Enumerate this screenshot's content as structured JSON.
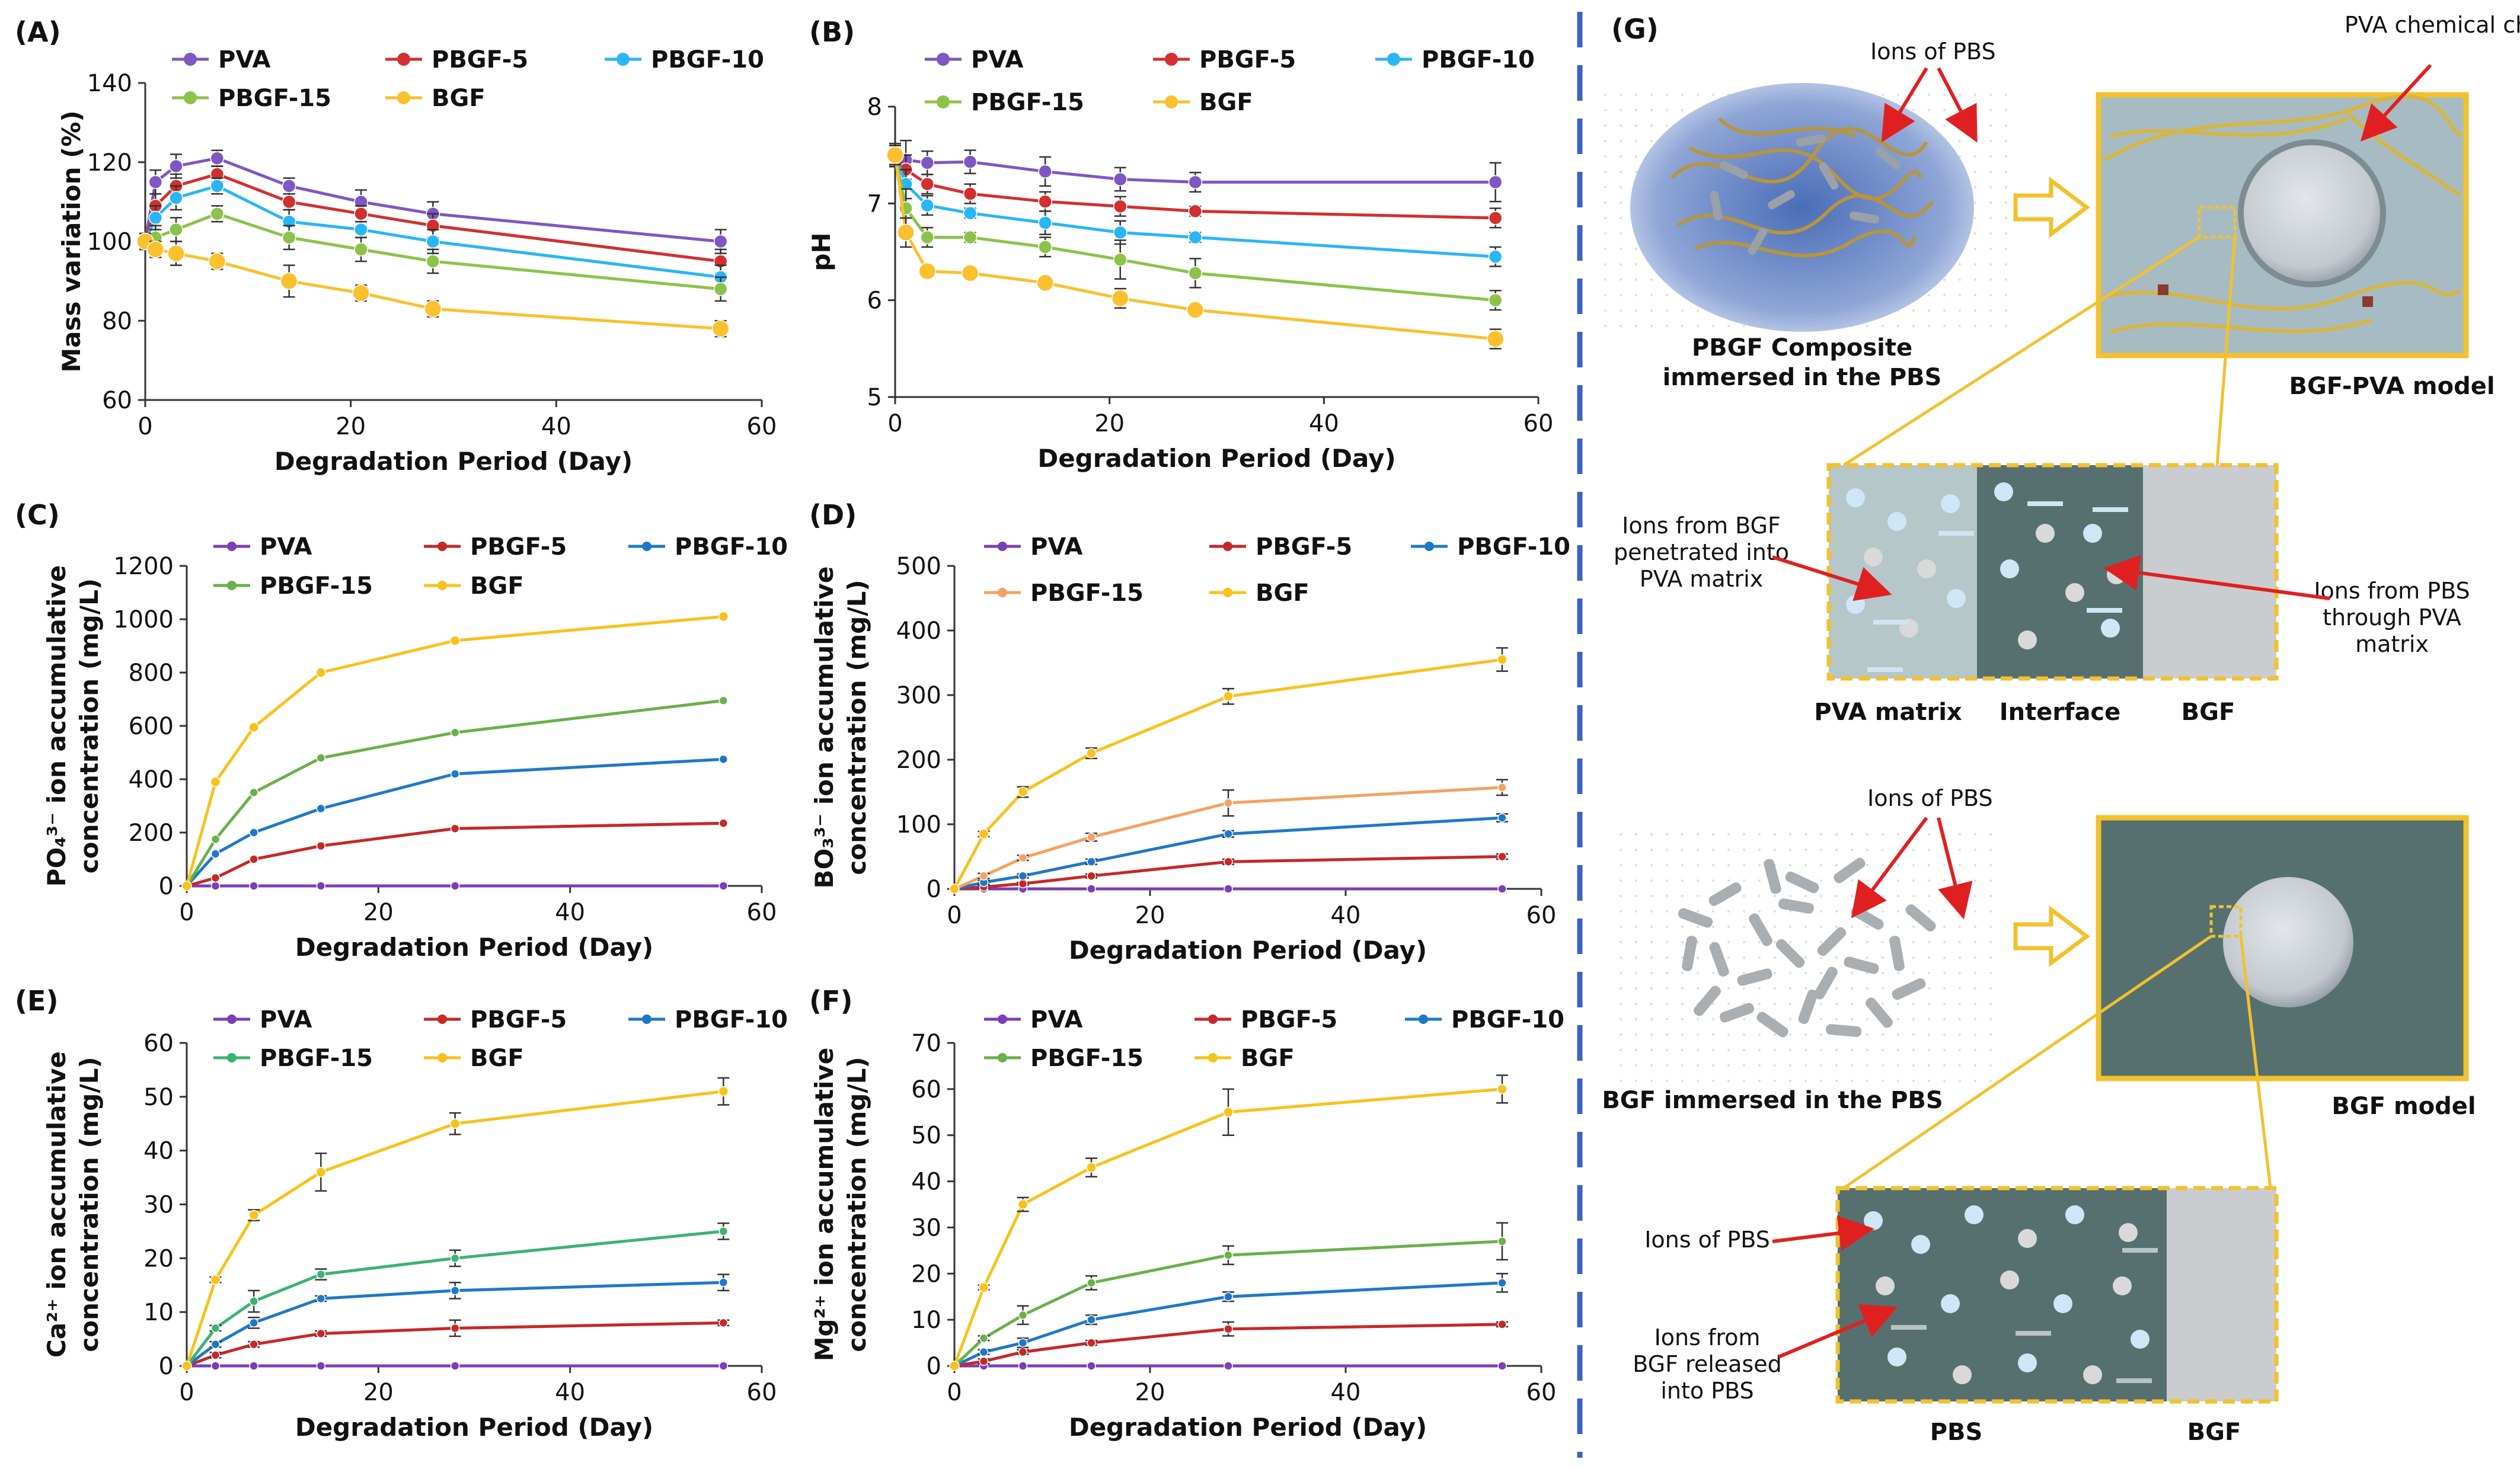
{
  "chart_data": [
    {
      "id": "A",
      "panel_label": "(A)",
      "type": "line",
      "xlabel": "Degradation Period (Day)",
      "ylabel": [
        "Mass variation (%)"
      ],
      "xlim": [
        0,
        60
      ],
      "ylim": [
        60,
        140
      ],
      "xticks": [
        0,
        20,
        40,
        60
      ],
      "yticks": [
        60,
        80,
        100,
        120,
        140
      ],
      "x": [
        0,
        1,
        3,
        7,
        14,
        21,
        28,
        56
      ],
      "legend_rows": [
        [
          "PVA",
          "PBGF-5",
          "PBGF-10"
        ],
        [
          "PBGF-15",
          "BGF"
        ]
      ],
      "series": [
        {
          "name": "PVA",
          "color": "#7e57c2",
          "values": [
            100,
            115,
            119,
            121,
            114,
            110,
            107,
            100
          ],
          "err": [
            2,
            3,
            3,
            2,
            2,
            3,
            3,
            3
          ]
        },
        {
          "name": "PBGF-5",
          "color": "#d32f2f",
          "values": [
            100,
            109,
            114,
            117,
            110,
            107,
            104,
            95
          ],
          "err": [
            2,
            3,
            3,
            2,
            2,
            2,
            3,
            3
          ]
        },
        {
          "name": "PBGF-10",
          "color": "#29b6f6",
          "values": [
            100,
            106,
            111,
            114,
            105,
            103,
            100,
            91
          ],
          "err": [
            2,
            3,
            3,
            2,
            3,
            2,
            3,
            3
          ]
        },
        {
          "name": "PBGF-15",
          "color": "#8bc34a",
          "values": [
            100,
            101,
            103,
            107,
            101,
            98,
            95,
            88
          ],
          "err": [
            2,
            3,
            3,
            2,
            3,
            3,
            3,
            3
          ]
        },
        {
          "name": "BGF",
          "color": "#fbc02d",
          "values": [
            100,
            98,
            97,
            95,
            90,
            87,
            83,
            78
          ],
          "err": [
            2,
            2,
            3,
            2,
            4,
            2,
            2,
            2
          ]
        }
      ]
    },
    {
      "id": "B",
      "panel_label": "(B)",
      "type": "line",
      "xlabel": "Degradation Period (Day)",
      "ylabel": [
        "pH"
      ],
      "xlim": [
        0,
        60
      ],
      "ylim": [
        5,
        8
      ],
      "xticks": [
        0,
        20,
        40,
        60
      ],
      "yticks": [
        5,
        6,
        7,
        8
      ],
      "x": [
        0,
        1,
        3,
        7,
        14,
        21,
        28,
        56
      ],
      "legend_rows": [
        [
          "PVA",
          "PBGF-5",
          "PBGF-10"
        ],
        [
          "PBGF-15",
          "BGF"
        ]
      ],
      "series": [
        {
          "name": "PVA",
          "color": "#7e57c2",
          "values": [
            7.5,
            7.45,
            7.42,
            7.43,
            7.33,
            7.25,
            7.22,
            7.22
          ],
          "err": [
            0.12,
            0.2,
            0.12,
            0.12,
            0.15,
            0.12,
            0.1,
            0.2
          ]
        },
        {
          "name": "PBGF-5",
          "color": "#d32f2f",
          "values": [
            7.5,
            7.35,
            7.2,
            7.1,
            7.02,
            6.97,
            6.92,
            6.85
          ],
          "err": [
            0.1,
            0.15,
            0.1,
            0.1,
            0.1,
            0.1,
            0.05,
            0.1
          ]
        },
        {
          "name": "PBGF-10",
          "color": "#29b6f6",
          "values": [
            7.5,
            7.2,
            6.98,
            6.9,
            6.8,
            6.7,
            6.65,
            6.45
          ],
          "err": [
            0.1,
            0.15,
            0.1,
            0.05,
            0.12,
            0.12,
            0.05,
            0.1
          ]
        },
        {
          "name": "PBGF-15",
          "color": "#8bc34a",
          "values": [
            7.5,
            6.95,
            6.65,
            6.65,
            6.55,
            6.42,
            6.28,
            6.0
          ],
          "err": [
            0.1,
            0.2,
            0.1,
            0.05,
            0.1,
            0.2,
            0.15,
            0.1
          ]
        },
        {
          "name": "BGF",
          "color": "#fbc02d",
          "values": [
            7.5,
            6.7,
            6.3,
            6.28,
            6.18,
            6.02,
            5.9,
            5.6
          ],
          "err": [
            0.1,
            0.15,
            0.05,
            0.05,
            0.05,
            0.1,
            0.05,
            0.1
          ]
        }
      ]
    },
    {
      "id": "C",
      "panel_label": "(C)",
      "type": "line",
      "xlabel": "Degradation Period (Day)",
      "ylabel": [
        "PO₄³⁻ ion accumulative",
        "concentration (mg/L)"
      ],
      "xlim": [
        0,
        60
      ],
      "ylim": [
        0,
        1200
      ],
      "xticks": [
        0,
        20,
        40,
        60
      ],
      "yticks": [
        0,
        200,
        400,
        600,
        800,
        1000,
        1200
      ],
      "x": [
        0,
        3,
        7,
        14,
        28,
        56
      ],
      "legend_rows": [
        [
          "PVA",
          "PBGF-5",
          "PBGF-10"
        ],
        [
          "PBGF-15",
          "BGF"
        ]
      ],
      "series": [
        {
          "name": "PVA",
          "color": "#7b3fb5",
          "values": [
            0,
            0,
            0,
            0,
            0,
            0
          ]
        },
        {
          "name": "PBGF-5",
          "color": "#c62828",
          "values": [
            0,
            30,
            100,
            150,
            215,
            235
          ]
        },
        {
          "name": "PBGF-10",
          "color": "#1e78c8",
          "values": [
            0,
            120,
            200,
            290,
            420,
            475
          ]
        },
        {
          "name": "PBGF-15",
          "color": "#6ab04c",
          "values": [
            0,
            175,
            350,
            480,
            575,
            695
          ]
        },
        {
          "name": "BGF",
          "color": "#f9c21b",
          "values": [
            0,
            390,
            595,
            800,
            920,
            1010
          ]
        }
      ]
    },
    {
      "id": "D",
      "panel_label": "(D)",
      "type": "line",
      "xlabel": "Degradation Period (Day)",
      "ylabel": [
        "BO₃³⁻ ion accumulative",
        "concentration (mg/L)"
      ],
      "xlim": [
        0,
        60
      ],
      "ylim": [
        0,
        500
      ],
      "xticks": [
        0,
        20,
        40,
        60
      ],
      "yticks": [
        0,
        100,
        200,
        300,
        400,
        500
      ],
      "x": [
        0,
        3,
        7,
        14,
        28,
        56
      ],
      "legend_rows": [
        [
          "PVA",
          "PBGF-5",
          "PBGF-10"
        ],
        [
          "PBGF-15",
          "BGF"
        ]
      ],
      "series": [
        {
          "name": "PVA",
          "color": "#7b3fb5",
          "values": [
            0,
            0,
            0,
            0,
            0,
            0
          ]
        },
        {
          "name": "PBGF-5",
          "color": "#c62828",
          "values": [
            0,
            3,
            8,
            20,
            42,
            50
          ],
          "err": [
            0,
            2,
            2,
            3,
            4,
            4
          ]
        },
        {
          "name": "PBGF-10",
          "color": "#1e78c8",
          "values": [
            0,
            10,
            20,
            42,
            85,
            110
          ],
          "err": [
            0,
            3,
            3,
            4,
            5,
            6
          ]
        },
        {
          "name": "PBGF-15",
          "color": "#f4a261",
          "values": [
            0,
            20,
            48,
            80,
            133,
            157
          ],
          "err": [
            0,
            4,
            4,
            6,
            20,
            12
          ]
        },
        {
          "name": "BGF",
          "color": "#f9c21b",
          "values": [
            0,
            85,
            150,
            210,
            298,
            355
          ],
          "err": [
            0,
            4,
            8,
            8,
            12,
            18
          ]
        }
      ]
    },
    {
      "id": "E",
      "panel_label": "(E)",
      "type": "line",
      "xlabel": "Degradation Period (Day)",
      "ylabel": [
        "Ca²⁺ ion accumulative",
        "concentration (mg/L)"
      ],
      "xlim": [
        0,
        60
      ],
      "ylim": [
        0,
        60
      ],
      "xticks": [
        0,
        20,
        40,
        60
      ],
      "yticks": [
        0,
        10,
        20,
        30,
        40,
        50,
        60
      ],
      "x": [
        0,
        3,
        7,
        14,
        28,
        56
      ],
      "legend_rows": [
        [
          "PVA",
          "PBGF-5",
          "PBGF-10"
        ],
        [
          "PBGF-15",
          "BGF"
        ]
      ],
      "series": [
        {
          "name": "PVA",
          "color": "#7b3fb5",
          "values": [
            0,
            0,
            0,
            0,
            0,
            0
          ]
        },
        {
          "name": "PBGF-5",
          "color": "#c62828",
          "values": [
            0,
            2,
            4,
            6,
            7,
            8
          ],
          "err": [
            0,
            0.5,
            0.5,
            0.5,
            1.5,
            0.5
          ]
        },
        {
          "name": "PBGF-10",
          "color": "#1e78c8",
          "values": [
            0,
            4,
            8,
            12.5,
            14,
            15.5
          ],
          "err": [
            0,
            0.5,
            1,
            0.5,
            1.5,
            1.5
          ]
        },
        {
          "name": "PBGF-15",
          "color": "#3cb371",
          "values": [
            0,
            7,
            12,
            17,
            20,
            25
          ],
          "err": [
            0,
            0.5,
            2,
            1,
            1.5,
            1.5
          ]
        },
        {
          "name": "BGF",
          "color": "#f9c21b",
          "values": [
            0,
            16,
            28,
            36,
            45,
            51
          ],
          "err": [
            0,
            0.5,
            1,
            3.5,
            2,
            2.5
          ]
        }
      ]
    },
    {
      "id": "F",
      "panel_label": "(F)",
      "type": "line",
      "xlabel": "Degradation Period (Day)",
      "ylabel": [
        "Mg²⁺ ion accumulative",
        "concentration (mg/L)"
      ],
      "xlim": [
        0,
        60
      ],
      "ylim": [
        0,
        70
      ],
      "xticks": [
        0,
        20,
        40,
        60
      ],
      "yticks": [
        0,
        10,
        20,
        30,
        40,
        50,
        60,
        70
      ],
      "x": [
        0,
        3,
        7,
        14,
        28,
        56
      ],
      "legend_rows": [
        [
          "PVA",
          "PBGF-5",
          "PBGF-10"
        ],
        [
          "PBGF-15",
          "BGF"
        ]
      ],
      "series": [
        {
          "name": "PVA",
          "color": "#7b3fb5",
          "values": [
            0,
            0,
            0,
            0,
            0,
            0
          ]
        },
        {
          "name": "PBGF-5",
          "color": "#c62828",
          "values": [
            0,
            1,
            3,
            5,
            8,
            9
          ],
          "err": [
            0,
            0.5,
            0.5,
            0.5,
            1.5,
            0.5
          ]
        },
        {
          "name": "PBGF-10",
          "color": "#1e78c8",
          "values": [
            0,
            3,
            5,
            10,
            15,
            18
          ],
          "err": [
            0,
            0.5,
            1,
            1,
            1,
            2
          ]
        },
        {
          "name": "PBGF-15",
          "color": "#6ab04c",
          "values": [
            0,
            6,
            11,
            18,
            24,
            27
          ],
          "err": [
            0,
            0.5,
            2,
            1.5,
            2,
            4
          ]
        },
        {
          "name": "BGF",
          "color": "#f9c21b",
          "values": [
            0,
            17,
            35,
            43,
            55,
            60
          ],
          "err": [
            0,
            0.5,
            1.5,
            2,
            5,
            3
          ]
        }
      ]
    }
  ],
  "schematic": {
    "label": "(G)",
    "top": {
      "ions_label": "Ions of PBS",
      "chain_label": "PVA chemical chain",
      "composite_caption": [
        "PBGF Composite",
        "immersed in the PBS"
      ],
      "model_caption": "BGF-PVA model",
      "zoom_left_note": [
        "Ions from BGF",
        "penetrated into",
        "PVA matrix"
      ],
      "zoom_right_note": [
        "Ions from PBS",
        "through PVA",
        "matrix"
      ],
      "zone_labels": [
        "PVA matrix",
        "Interface",
        "BGF"
      ]
    },
    "bottom": {
      "ions_label": "Ions of PBS",
      "bgf_caption": "BGF immersed in the PBS",
      "model_caption": "BGF model",
      "zoom_note_1": "Ions of PBS",
      "zoom_note_2": [
        "Ions from",
        "BGF released",
        "into PBS"
      ],
      "zone_labels": [
        "PBS",
        "BGF"
      ]
    }
  },
  "colors": {
    "divider": "#3b63c4",
    "box": "#f2c12e",
    "arrow_red": "#e02020",
    "dark_teal": "#526c6e",
    "light_grey": "#c9cdd0"
  }
}
